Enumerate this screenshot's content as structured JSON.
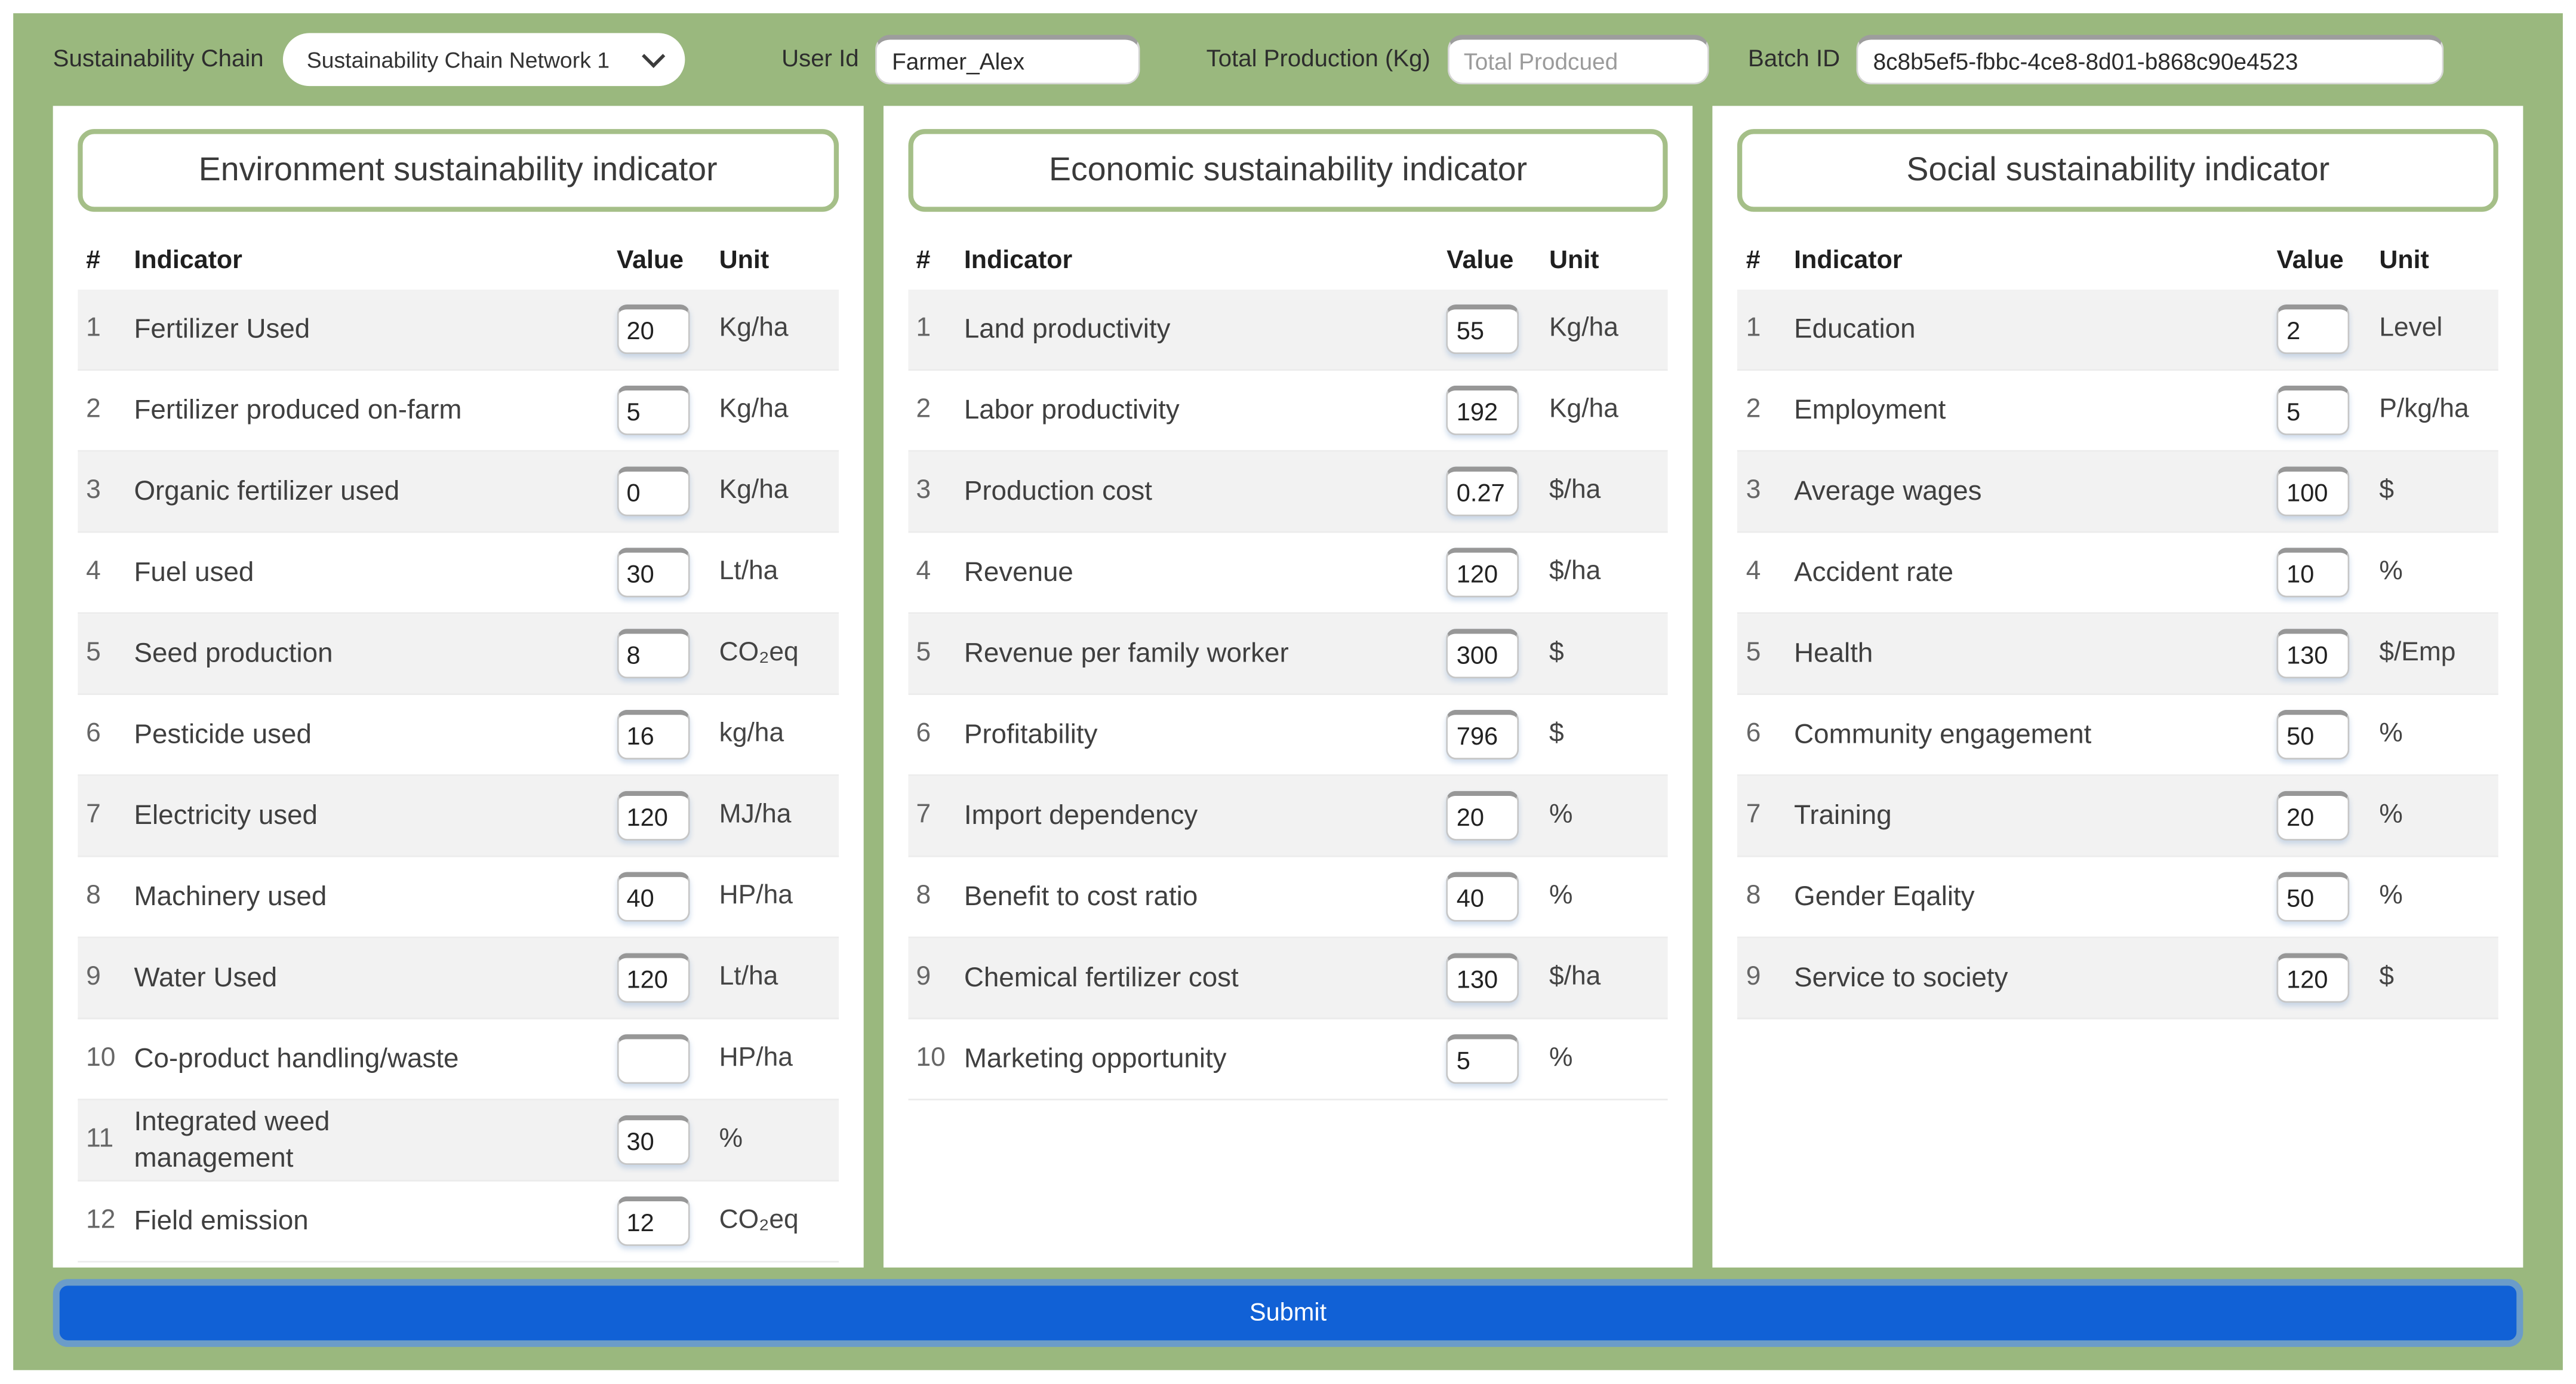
{
  "header": {
    "chain_label": "Sustainability Chain",
    "chain_select_value": "Sustainability Chain Network 1",
    "user_id_label": "User Id",
    "user_id_value": "Farmer_Alex",
    "total_production_label": "Total Production (Kg)",
    "total_production_placeholder": "Total Prodcued",
    "batch_id_label": "Batch ID",
    "batch_id_value": "8c8b5ef5-fbbc-4ce8-8d01-b868c90e4523"
  },
  "columns": {
    "num": "#",
    "indicator": "Indicator",
    "value": "Value",
    "unit": "Unit"
  },
  "panels": [
    {
      "title": "Environment sustainability indicator",
      "rows": [
        {
          "num": "1",
          "indicator": "Fertilizer Used",
          "value": "20",
          "unit": "Kg/ha"
        },
        {
          "num": "2",
          "indicator": "Fertilizer produced on-farm",
          "value": "5",
          "unit": "Kg/ha"
        },
        {
          "num": "3",
          "indicator": "Organic fertilizer used",
          "value": "0",
          "unit": "Kg/ha"
        },
        {
          "num": "4",
          "indicator": "Fuel used",
          "value": "30",
          "unit": "Lt/ha"
        },
        {
          "num": "5",
          "indicator": "Seed production",
          "value": "8",
          "unit": "CO₂eq"
        },
        {
          "num": "6",
          "indicator": "Pesticide used",
          "value": "16",
          "unit": "kg/ha"
        },
        {
          "num": "7",
          "indicator": "Electricity used",
          "value": "120",
          "unit": "MJ/ha"
        },
        {
          "num": "8",
          "indicator": "Machinery used",
          "value": "40",
          "unit": "HP/ha"
        },
        {
          "num": "9",
          "indicator": "Water Used",
          "value": "120",
          "unit": "Lt/ha"
        },
        {
          "num": "10",
          "indicator": "Co-product handling/waste",
          "value": "",
          "unit": "HP/ha"
        },
        {
          "num": "11",
          "indicator": "Integrated weed management",
          "value": "30",
          "unit": "%"
        },
        {
          "num": "12",
          "indicator": "Field emission",
          "value": "12",
          "unit": "CO₂eq"
        }
      ]
    },
    {
      "title": "Economic sustainability indicator",
      "rows": [
        {
          "num": "1",
          "indicator": "Land productivity",
          "value": "55",
          "unit": "Kg/ha"
        },
        {
          "num": "2",
          "indicator": "Labor productivity",
          "value": "192",
          "unit": "Kg/ha"
        },
        {
          "num": "3",
          "indicator": "Production cost",
          "value": "0.27",
          "unit": "$/ha"
        },
        {
          "num": "4",
          "indicator": "Revenue",
          "value": "120",
          "unit": "$/ha"
        },
        {
          "num": "5",
          "indicator": "Revenue per family worker",
          "value": "300",
          "unit": "$"
        },
        {
          "num": "6",
          "indicator": "Profitability",
          "value": "796",
          "unit": "$"
        },
        {
          "num": "7",
          "indicator": "Import dependency",
          "value": "20",
          "unit": "%"
        },
        {
          "num": "8",
          "indicator": "Benefit to cost ratio",
          "value": "40",
          "unit": "%"
        },
        {
          "num": "9",
          "indicator": "Chemical fertilizer cost",
          "value": "130",
          "unit": "$/ha"
        },
        {
          "num": "10",
          "indicator": "Marketing opportunity",
          "value": "5",
          "unit": "%"
        }
      ]
    },
    {
      "title": "Social sustainability indicator",
      "rows": [
        {
          "num": "1",
          "indicator": "Education",
          "value": "2",
          "unit": "Level"
        },
        {
          "num": "2",
          "indicator": "Employment",
          "value": "5",
          "unit": "P/kg/ha"
        },
        {
          "num": "3",
          "indicator": "Average wages",
          "value": "100",
          "unit": "$"
        },
        {
          "num": "4",
          "indicator": "Accident rate",
          "value": "10",
          "unit": "%"
        },
        {
          "num": "5",
          "indicator": "Health",
          "value": "130",
          "unit": "$/Emp"
        },
        {
          "num": "6",
          "indicator": "Community engagement",
          "value": "50",
          "unit": "%"
        },
        {
          "num": "7",
          "indicator": "Training",
          "value": "20",
          "unit": "%"
        },
        {
          "num": "8",
          "indicator": "Gender Eqality",
          "value": "50",
          "unit": "%"
        },
        {
          "num": "9",
          "indicator": "Service to society",
          "value": "120",
          "unit": "$"
        }
      ]
    }
  ],
  "submit_label": "Submit",
  "colors": {
    "page_background": "#ffffff",
    "container_green": "#9ab87e",
    "panel_title_border": "#a5bf88",
    "row_stripe": "#f2f2f2",
    "submit_blue": "#1161d6",
    "submit_ring": "#6b9cc9"
  }
}
